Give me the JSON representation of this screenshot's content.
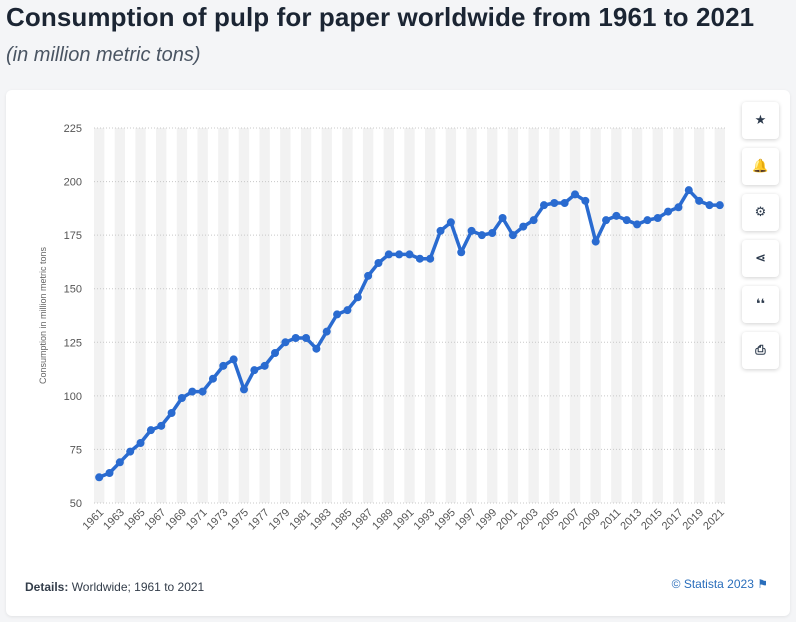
{
  "title": "Consumption of pulp for paper worldwide from 1961 to 2021",
  "subtitle": "(in million metric tons)",
  "details_label": "Details:",
  "details_text": " Worldwide; 1961 to 2021",
  "source": "© Statista 2023",
  "colors": {
    "line": "#2a6bd0",
    "title": "#1b2533",
    "band": "#f2f2f2",
    "grid": "#c8c8c8"
  },
  "tools": [
    {
      "name": "star-icon",
      "glyph": "★"
    },
    {
      "name": "bell-icon",
      "glyph": "🔔"
    },
    {
      "name": "gear-icon",
      "glyph": "⚙"
    },
    {
      "name": "share-icon",
      "glyph": "⋖"
    },
    {
      "name": "quote-icon",
      "glyph": "❛❛"
    },
    {
      "name": "print-icon",
      "glyph": "⎙"
    }
  ],
  "chart_data": {
    "type": "line",
    "ylabel": "Consumption in million metric tons",
    "ylim": [
      50,
      225
    ],
    "yticks": [
      50,
      75,
      100,
      125,
      150,
      175,
      200,
      225
    ],
    "grid": true,
    "x": [
      1961,
      1962,
      1963,
      1964,
      1965,
      1966,
      1967,
      1968,
      1969,
      1970,
      1971,
      1972,
      1973,
      1974,
      1975,
      1976,
      1977,
      1978,
      1979,
      1980,
      1981,
      1982,
      1983,
      1984,
      1985,
      1986,
      1987,
      1988,
      1989,
      1990,
      1991,
      1992,
      1993,
      1994,
      1995,
      1996,
      1997,
      1998,
      1999,
      2000,
      2001,
      2002,
      2003,
      2004,
      2005,
      2006,
      2007,
      2008,
      2009,
      2010,
      2011,
      2012,
      2013,
      2014,
      2015,
      2016,
      2017,
      2018,
      2019,
      2020,
      2021
    ],
    "xtick_labels": [
      "1961",
      "1963",
      "1965",
      "1967",
      "1969",
      "1971",
      "1973",
      "1975",
      "1977",
      "1979",
      "1981",
      "1983",
      "1985",
      "1987",
      "1989",
      "1991",
      "1993",
      "1995",
      "1997",
      "1999",
      "2001",
      "2003",
      "2005",
      "2007",
      "2009",
      "2011",
      "2013",
      "2015",
      "2017",
      "2019",
      "2021"
    ],
    "series": [
      {
        "values": [
          62,
          64,
          69,
          74,
          78,
          84,
          86,
          92,
          99,
          102,
          102,
          108,
          114,
          117,
          103,
          112,
          114,
          120,
          125,
          127,
          127,
          122,
          130,
          138,
          140,
          146,
          156,
          162,
          166,
          166,
          166,
          164,
          164,
          177,
          181,
          167,
          177,
          175,
          176,
          183,
          175,
          179,
          182,
          189,
          190,
          190,
          194,
          191,
          172,
          182,
          184,
          182,
          180,
          182,
          183,
          186,
          188,
          196,
          191,
          189,
          189
        ]
      }
    ]
  }
}
